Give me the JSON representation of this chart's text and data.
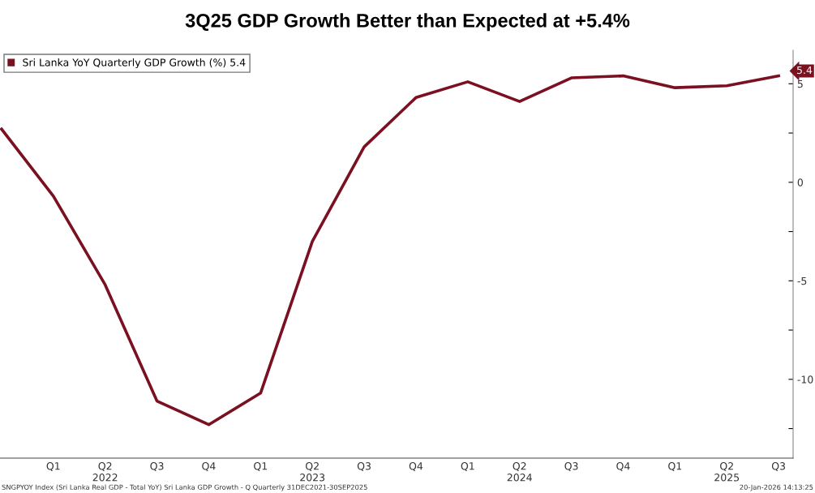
{
  "chart_data": {
    "type": "line",
    "title": "3Q25 GDP Growth Better than Expected at +5.4%",
    "categories": [
      null,
      "Q1",
      "Q2\n2022",
      "Q3",
      "Q4",
      "Q1",
      "Q2\n2023",
      "Q3",
      "Q4",
      "Q1",
      "Q2\n2024",
      "Q3",
      "Q4",
      "Q1",
      "Q2\n2025",
      "Q3"
    ],
    "series": [
      {
        "name": "Sri Lanka YoY Quarterly GDP Growth (%) 5.4",
        "color": "#7a1020",
        "values": [
          2.7,
          -0.7,
          -5.2,
          -11.1,
          -12.3,
          -10.7,
          -3.0,
          1.8,
          4.3,
          5.1,
          4.1,
          5.3,
          5.4,
          4.8,
          4.9,
          5.4
        ],
        "value_labels": [
          null,
          null,
          null,
          null,
          null,
          null,
          null,
          null,
          null,
          null,
          null,
          null,
          null,
          null,
          null,
          "5.4"
        ]
      }
    ],
    "ylim": [
      -14,
      6.7
    ],
    "yticks": [
      {
        "value": -12.5,
        "label": null
      },
      -10,
      {
        "value": -7.5,
        "label": null
      },
      -5,
      {
        "value": -2.5,
        "label": null
      },
      0,
      {
        "value": 2.5,
        "label": null
      },
      5
    ],
    "annotations": [
      "SNGPYOY Index (Sri Lanka Real GDP - Total YoY) Sri Lanka GDP Growth - Q Quarterly 31DEC2021-30SEP2025",
      "20-Jan-2026 14:13:25"
    ],
    "legend": "top left",
    "grid": false,
    "marker": "none",
    "line_style": "solid"
  }
}
